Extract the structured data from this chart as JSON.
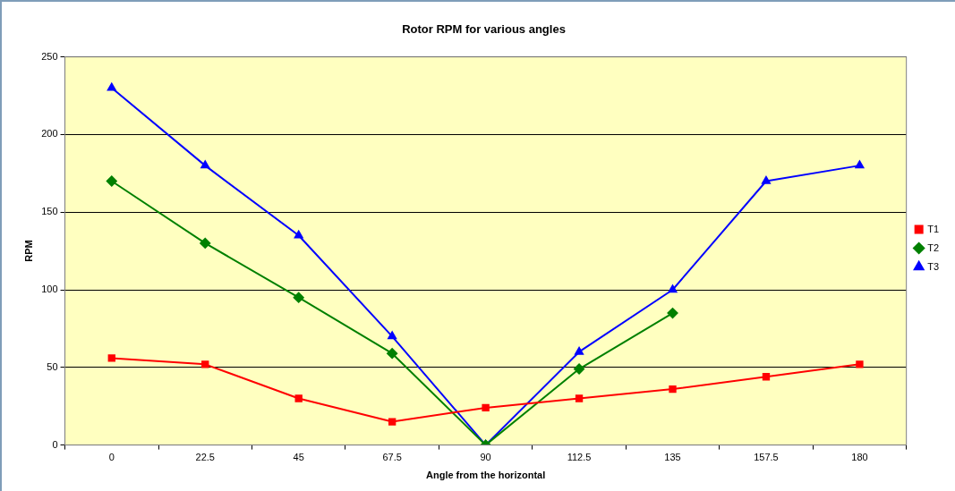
{
  "chart_data": {
    "type": "line",
    "title": "Rotor RPM for various angles",
    "xlabel": "Angle from the horizontal",
    "ylabel": "RPM",
    "categories": [
      "0",
      "22.5",
      "45",
      "67.5",
      "90",
      "112.5",
      "135",
      "157.5",
      "180"
    ],
    "series": [
      {
        "name": "T1",
        "color": "#ff0000",
        "marker": "square",
        "values": [
          56,
          52,
          30,
          15,
          24,
          30,
          36,
          44,
          52
        ]
      },
      {
        "name": "T2",
        "color": "#008000",
        "marker": "diamond",
        "values": [
          170,
          130,
          95,
          59,
          0,
          49,
          85,
          null,
          null
        ]
      },
      {
        "name": "T3",
        "color": "#0000ff",
        "marker": "triangle",
        "values": [
          230,
          180,
          135,
          70,
          0,
          60,
          100,
          170,
          180
        ]
      }
    ],
    "ylim": [
      0,
      250
    ],
    "yticks": [
      0,
      50,
      100,
      150,
      200,
      250
    ],
    "grid": "y",
    "legend": "right",
    "line_style": "solid"
  }
}
